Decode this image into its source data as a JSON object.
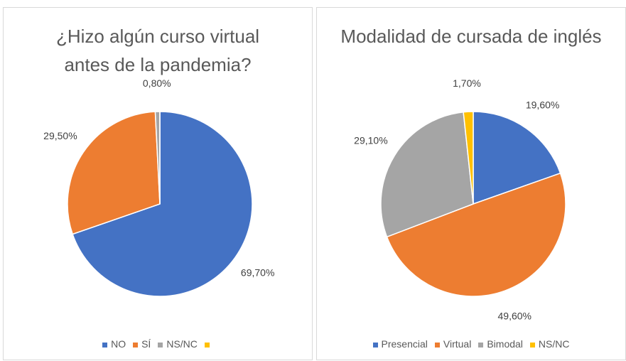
{
  "chart_data": [
    {
      "type": "pie",
      "title": "¿Hizo algún curso virtual antes de la pandemia?",
      "categories": [
        "NO",
        "SÍ",
        "NS/NC",
        null
      ],
      "values": [
        69.7,
        29.5,
        0.8,
        0
      ],
      "value_labels": [
        "69,70%",
        "29,50%",
        "0,80%",
        null
      ],
      "colors": [
        "#4472c4",
        "#ed7d31",
        "#a5a5a5",
        "#ffc000"
      ]
    },
    {
      "type": "pie",
      "title": "Modalidad de cursada de inglés",
      "categories": [
        "Presencial",
        "Virtual",
        "Bimodal",
        "NS/NC"
      ],
      "values": [
        19.6,
        49.6,
        29.1,
        1.7
      ],
      "value_labels": [
        "19,60%",
        "49,60%",
        "29,10%",
        "1,70%"
      ],
      "colors": [
        "#4472c4",
        "#ed7d31",
        "#a5a5a5",
        "#ffc000"
      ]
    }
  ]
}
